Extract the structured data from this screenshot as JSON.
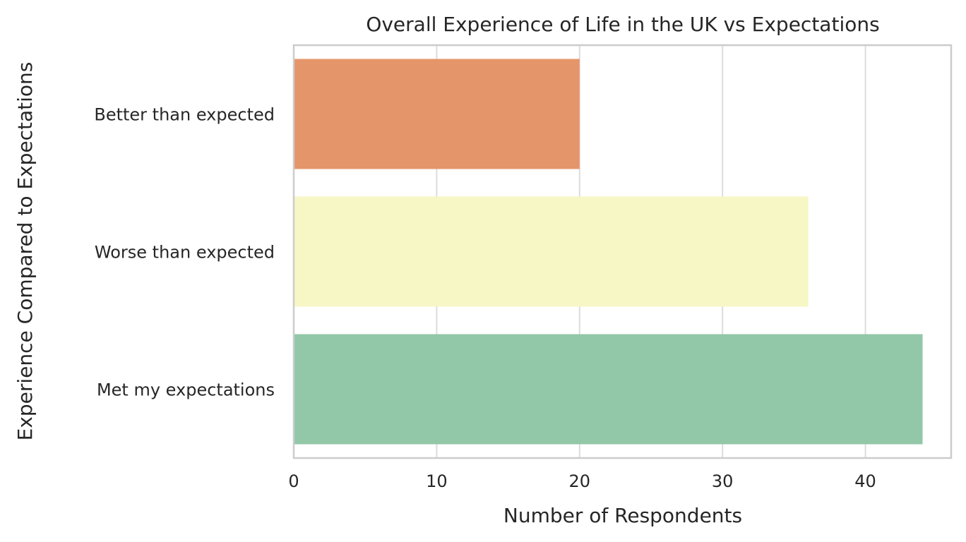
{
  "chart_data": {
    "type": "bar",
    "orientation": "horizontal",
    "title": "Overall Experience of Life in the UK vs Expectations",
    "xlabel": "Number of Respondents",
    "ylabel": "Experience Compared to Expectations",
    "categories": [
      "Better than expected",
      "Worse than expected",
      "Met my expectations"
    ],
    "values": [
      20,
      36,
      44
    ],
    "colors": [
      "#e5956a",
      "#f7f6c5",
      "#92c7a7"
    ],
    "xlim": [
      0,
      46
    ],
    "xticks": [
      0,
      10,
      20,
      30,
      40
    ],
    "grid": true,
    "grid_axis": "x"
  }
}
